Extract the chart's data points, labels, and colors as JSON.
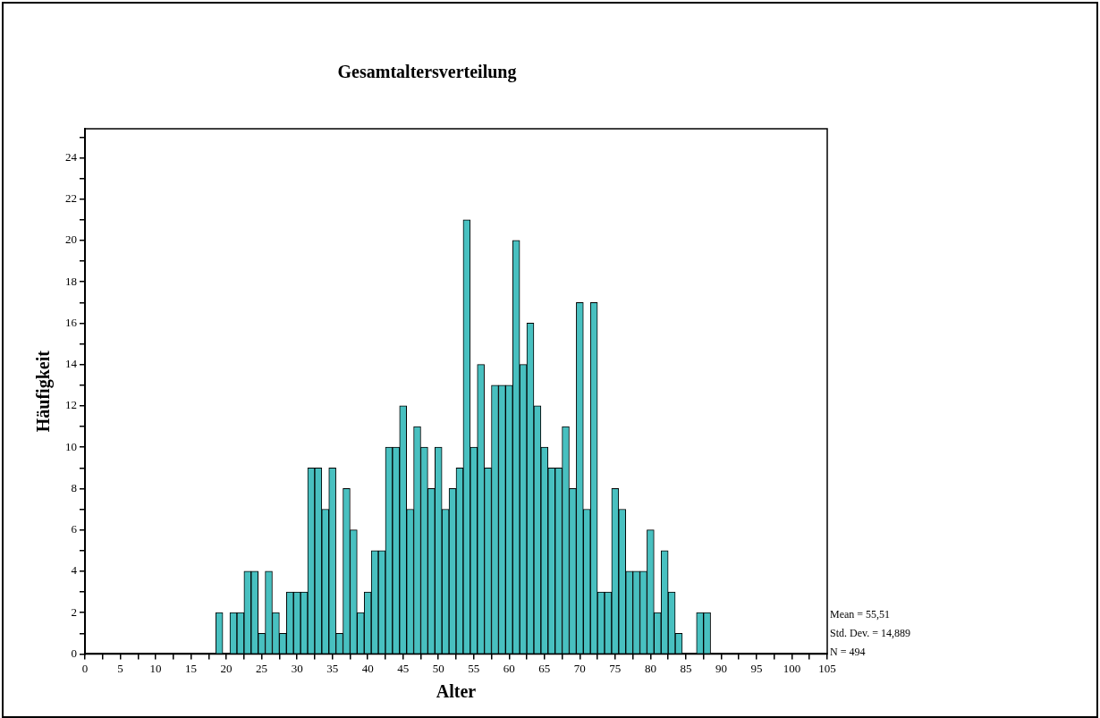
{
  "chart_data": {
    "type": "histogram",
    "title": "Gesamtaltersverteilung",
    "xlabel": "Alter",
    "ylabel": "Häufigkeit",
    "bins": [
      18.5,
      19.5,
      20.5,
      21.5,
      22.5,
      23.5,
      24.5,
      25.5,
      26.5,
      27.5,
      28.5,
      29.5,
      30.5,
      31.5,
      32.5,
      33.5,
      34.5,
      35.5,
      36.5,
      37.5,
      38.5,
      39.5,
      40.5,
      41.5,
      42.5,
      43.5,
      44.5,
      45.5,
      46.5,
      47.5,
      48.5,
      49.5,
      50.5,
      51.5,
      52.5,
      53.5,
      54.5,
      55.5,
      56.5,
      57.5,
      58.5,
      59.5,
      60.5,
      61.5,
      62.5,
      63.5,
      64.5,
      65.5,
      66.5,
      67.5,
      68.5,
      69.5,
      70.5,
      71.5,
      72.5,
      73.5,
      74.5,
      75.5,
      76.5,
      77.5,
      78.5,
      79.5,
      80.5,
      81.5,
      82.5,
      83.5,
      84.5,
      85.5,
      86.5,
      87.5,
      88.5
    ],
    "values": [
      2,
      0,
      2,
      2,
      4,
      4,
      1,
      4,
      2,
      1,
      3,
      3,
      3,
      9,
      9,
      7,
      9,
      1,
      8,
      6,
      2,
      3,
      5,
      5,
      10,
      10,
      12,
      7,
      11,
      10,
      8,
      10,
      7,
      8,
      9,
      21,
      10,
      14,
      9,
      13,
      13,
      13,
      20,
      14,
      16,
      12,
      10,
      9,
      9,
      11,
      8,
      17,
      7,
      17,
      3,
      3,
      8,
      7,
      4,
      4,
      4,
      6,
      2,
      5,
      3,
      1,
      0,
      0,
      2,
      2
    ],
    "color": "#48c0c0",
    "xlim": [
      0,
      105
    ],
    "xticks": [
      0,
      {
        "value": 2.5,
        "label": null
      },
      5,
      {
        "value": 7.5,
        "label": null
      },
      10,
      {
        "value": 12.5,
        "label": null
      },
      15,
      {
        "value": 17.5,
        "label": null
      },
      20,
      {
        "value": 22.5,
        "label": null
      },
      25,
      {
        "value": 27.5,
        "label": null
      },
      30,
      {
        "value": 32.5,
        "label": null
      },
      35,
      {
        "value": 37.5,
        "label": null
      },
      40,
      {
        "value": 42.5,
        "label": null
      },
      45,
      {
        "value": 47.5,
        "label": null
      },
      50,
      {
        "value": 52.5,
        "label": null
      },
      55,
      {
        "value": 57.5,
        "label": null
      },
      60,
      {
        "value": 62.5,
        "label": null
      },
      65,
      {
        "value": 67.5,
        "label": null
      },
      70,
      {
        "value": 72.5,
        "label": null
      },
      75,
      {
        "value": 77.5,
        "label": null
      },
      80,
      {
        "value": 82.5,
        "label": null
      },
      85,
      {
        "value": 87.5,
        "label": null
      },
      90,
      {
        "value": 92.5,
        "label": null
      },
      95,
      {
        "value": 97.5,
        "label": null
      },
      100,
      {
        "value": 102.5,
        "label": null
      },
      105
    ],
    "ylim": [
      0,
      25.4
    ],
    "yticks": [
      0,
      {
        "value": 1,
        "label": null
      },
      2,
      {
        "value": 3,
        "label": null
      },
      4,
      {
        "value": 5,
        "label": null
      },
      6,
      {
        "value": 7,
        "label": null
      },
      8,
      {
        "value": 9,
        "label": null
      },
      10,
      {
        "value": 11,
        "label": null
      },
      12,
      {
        "value": 13,
        "label": null
      },
      14,
      {
        "value": 15,
        "label": null
      },
      16,
      {
        "value": 17,
        "label": null
      },
      18,
      {
        "value": 19,
        "label": null
      },
      20,
      {
        "value": 21,
        "label": null
      },
      22,
      {
        "value": 23,
        "label": null
      },
      24,
      {
        "value": 25,
        "label": null
      }
    ],
    "grid": false,
    "legend": false,
    "annotations": [
      "Mean = 55,51",
      "Std. Dev. = 14,889",
      "N = 494"
    ]
  }
}
